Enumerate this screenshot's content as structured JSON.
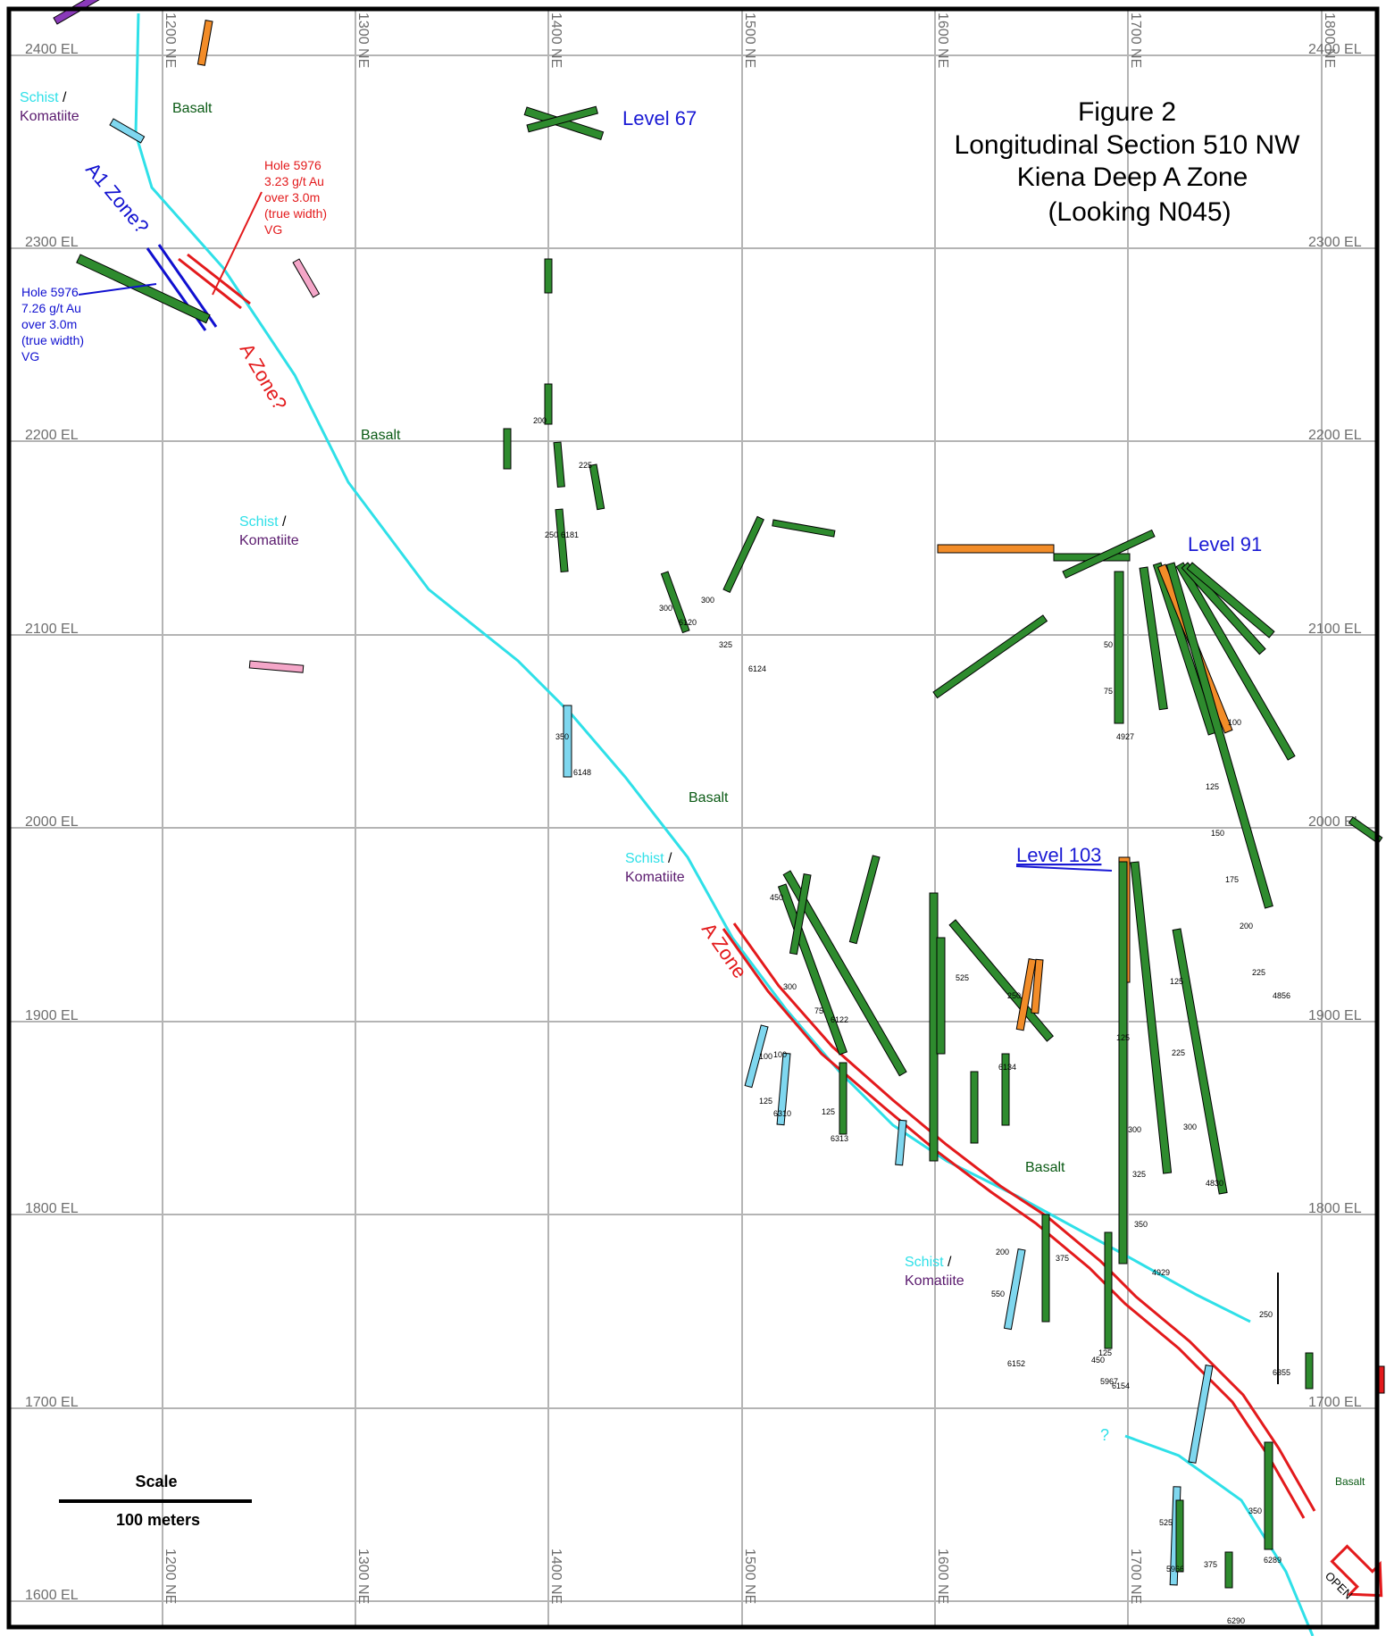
{
  "title": {
    "line1": "Figure 2",
    "line2": "Longitudinal Section 510 NW",
    "line3": "Kiena Deep A Zone",
    "line4": "(Looking N045)"
  },
  "elevation_labels": [
    "2400 EL",
    "2300 EL",
    "2200 EL",
    "2100 EL",
    "2000 EL",
    "1900 EL",
    "1800 EL",
    "1700 EL",
    "1600 EL"
  ],
  "easting_labels": [
    "1200 NE",
    "1300 NE",
    "1400 NE",
    "1500 NE",
    "1600 NE",
    "1700 NE",
    "1800 NE"
  ],
  "levels": {
    "l67": "Level 67",
    "l91": "Level 91",
    "l103": "Level 103"
  },
  "rock_labels": {
    "schist": "Schist",
    "slash": " /",
    "komatiite": "Komatiite",
    "basalt": "Basalt"
  },
  "zones": {
    "a1": "A1 Zone?",
    "a_upper": "A Zone?",
    "a_lower": "A Zone"
  },
  "callouts": {
    "hole_red": [
      "Hole 5976",
      "3.23 g/t Au",
      "over 3.0m",
      "(true width)",
      "VG"
    ],
    "hole_blue": [
      "Hole 5976",
      "7.26 g/t Au",
      "over 3.0m",
      "(true width)",
      "VG"
    ]
  },
  "scale": {
    "title": "Scale",
    "value": "100 meters"
  },
  "open_label": "OPEN",
  "question_mark": "?",
  "drill_holes": [
    {
      "id": "6120",
      "depth_marks": [
        "300"
      ]
    },
    {
      "id": "6124",
      "depth_marks": [
        "300",
        "325"
      ]
    },
    {
      "id": "6148",
      "depth_marks": [
        "350"
      ]
    },
    {
      "id": "6181",
      "depth_marks": [
        "200",
        "225",
        "250"
      ]
    },
    {
      "id": "4927",
      "depth_marks": [
        "50",
        "75"
      ]
    },
    {
      "id": "4929",
      "depth_marks": [
        "125",
        "300",
        "325",
        "350"
      ]
    },
    {
      "id": "4830",
      "depth_marks": [
        "125",
        "225",
        "300"
      ]
    },
    {
      "id": "4856",
      "depth_marks": [
        "100",
        "125",
        "150",
        "175",
        "200",
        "225"
      ]
    },
    {
      "id": "6134",
      "depth_marks": [
        "250",
        "525"
      ]
    },
    {
      "id": "6122",
      "depth_marks": [
        "75",
        "300",
        "450"
      ]
    },
    {
      "id": "6313",
      "depth_marks": [
        "100",
        "125"
      ]
    },
    {
      "id": "6310",
      "depth_marks": [
        "100",
        "125"
      ]
    },
    {
      "id": "6289",
      "depth_marks": [
        "350"
      ]
    },
    {
      "id": "6290",
      "depth_marks": [
        "375"
      ]
    },
    {
      "id": "5966",
      "depth_marks": [
        "525"
      ]
    },
    {
      "id": "6355",
      "depth_marks": [
        "250"
      ]
    },
    {
      "id": "5967",
      "depth_marks": [
        "450"
      ]
    },
    {
      "id": "6154",
      "depth_marks": [
        "375",
        "125"
      ]
    },
    {
      "id": "6152",
      "depth_marks": [
        "200",
        "550"
      ]
    }
  ],
  "colors": {
    "contact": "#2fe0e8",
    "a_zone": "#e31a1c",
    "a1_zone": "#1010d0",
    "level_text": "#1a1ad4",
    "basalt_text": "#0a5a14",
    "komatiite_text": "#5a1a6e",
    "hole_green": "#2e8b2e",
    "hole_orange": "#f28c28",
    "hole_pink": "#f4a6c8",
    "hole_cyan": "#7fd7ef",
    "hole_purple": "#8a3ab9"
  }
}
